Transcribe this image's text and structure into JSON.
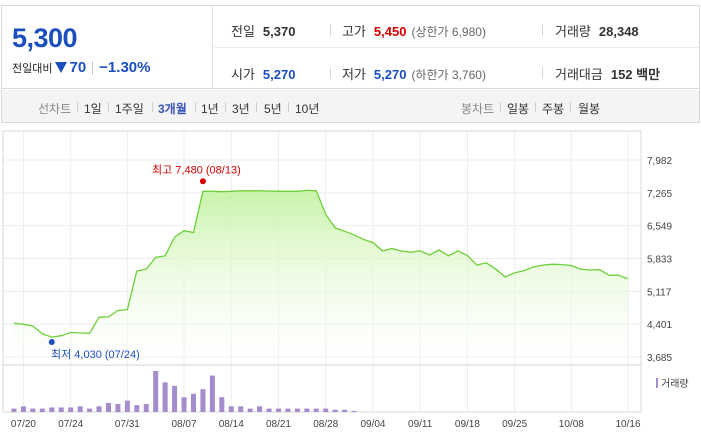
{
  "summary": {
    "price": "5,300",
    "change_label": "전일대비",
    "change_value": "70",
    "change_pct": "−1.30%",
    "prev_close_label": "전일",
    "prev_close": "5,370",
    "high_label": "고가",
    "high": "5,450",
    "upper_limit": "(상한가 6,980)",
    "volume_label": "거래량",
    "volume": "28,348",
    "open_label": "시가",
    "open": "5,270",
    "low_label": "저가",
    "low": "5,270",
    "lower_limit": "(하한가 3,760)",
    "amount_label": "거래대금",
    "amount": "152 백만"
  },
  "period_bar": {
    "line_label": "선차트",
    "periods": [
      "1일",
      "1주일",
      "3개월",
      "1년",
      "3년",
      "5년",
      "10년"
    ],
    "active": "3개월",
    "candle_label": "봉차트",
    "candles": [
      "일봉",
      "주봉",
      "월봉"
    ]
  },
  "colors": {
    "price_blue": "#1b4fc0",
    "high_red": "#d60000",
    "line_green": "#6fcf3a",
    "fill_green": "#c8f3a8",
    "volume_purple": "#a58ccc"
  },
  "chart_data": {
    "type": "area",
    "y_ticks": [
      "7,982",
      "7,265",
      "6,549",
      "5,833",
      "5,117",
      "4,401",
      "3,685"
    ],
    "ylim": [
      3685,
      7982
    ],
    "x_ticks": [
      "07/20",
      "07/24",
      "07/31",
      "08/07",
      "08/14",
      "08/21",
      "08/28",
      "09/04",
      "09/11",
      "09/18",
      "09/25",
      "10/08",
      "10/16"
    ],
    "x_tick_index": [
      1,
      6,
      12,
      18,
      23,
      28,
      33,
      38,
      43,
      48,
      53,
      59,
      65
    ],
    "high_annotation": "최고 7,480 (08/13)",
    "high_index": 20,
    "low_annotation": "최저 4,030 (07/24)",
    "low_index": 4,
    "volume_legend": "거래량",
    "price": [
      4420,
      4400,
      4360,
      4190,
      4120,
      4150,
      4220,
      4210,
      4200,
      4550,
      4560,
      4700,
      4720,
      5560,
      5600,
      5860,
      5890,
      6300,
      6440,
      6400,
      7300,
      7300,
      7290,
      7300,
      7310,
      7310,
      7310,
      7305,
      7300,
      7300,
      7300,
      7320,
      7310,
      6800,
      6500,
      6430,
      6350,
      6250,
      6180,
      6000,
      6050,
      6000,
      5970,
      6000,
      5910,
      6020,
      5890,
      6000,
      5900,
      5690,
      5740,
      5600,
      5430,
      5520,
      5570,
      5650,
      5690,
      5710,
      5700,
      5680,
      5600,
      5580,
      5590,
      5470,
      5470,
      5390
    ],
    "volume": [
      3,
      5,
      3,
      3,
      4,
      4,
      4,
      5,
      3,
      5,
      8,
      7,
      10,
      6,
      7,
      36,
      26,
      23,
      13,
      16,
      20,
      32,
      13,
      5,
      5,
      3,
      5,
      3,
      3,
      3,
      3,
      3,
      3,
      3,
      2,
      2,
      1,
      0,
      0,
      0,
      0,
      0,
      0,
      0,
      0,
      0,
      0,
      0,
      0,
      0,
      0,
      0,
      0,
      0,
      0,
      0,
      0,
      0,
      0,
      0,
      0,
      0,
      0,
      0,
      0,
      0
    ]
  }
}
